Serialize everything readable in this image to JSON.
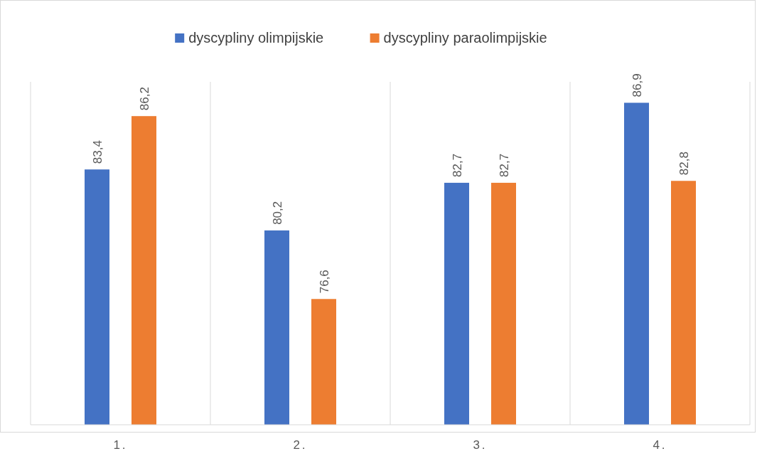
{
  "chart_data": {
    "type": "bar",
    "categories": [
      "1.",
      "2.",
      "3.",
      "4."
    ],
    "series": [
      {
        "name": "dyscypliny olimpijskie",
        "color": "#4472c4",
        "values": [
          83.4,
          80.2,
          82.7,
          86.9
        ],
        "value_labels": [
          "83,4",
          "80,2",
          "82,7",
          "86,9"
        ]
      },
      {
        "name": "dyscypliny paraolimpijskie",
        "color": "#ed7d31",
        "values": [
          86.2,
          76.6,
          82.7,
          82.8
        ],
        "value_labels": [
          "86,2",
          "76,6",
          "82,7",
          "82,8"
        ]
      }
    ],
    "ylim": [
      70,
      88
    ],
    "tick_labels": "x",
    "grid": "x",
    "legend": "top"
  }
}
